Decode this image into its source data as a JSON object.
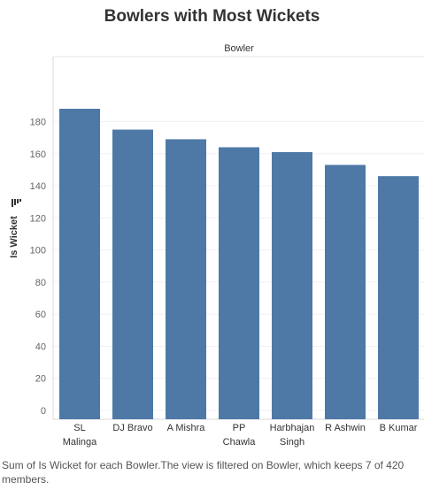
{
  "title": "Bowlers with Most Wickets",
  "footnote": "Sum of Is Wicket for each Bowler.The view is filtered on Bowler, which keeps 7 of 420 members.",
  "chart_data": {
    "type": "bar",
    "title": "Bowlers with Most Wickets",
    "column_header": "Bowler",
    "ylabel": "Is Wicket",
    "xlabel": "",
    "categories": [
      [
        "SL",
        "Malinga"
      ],
      [
        "DJ Bravo"
      ],
      [
        "A Mishra"
      ],
      [
        "PP",
        "Chawla"
      ],
      [
        "Harbhajan",
        "Singh"
      ],
      [
        "R Ashwin"
      ],
      [
        "B Kumar"
      ]
    ],
    "values": [
      188,
      175,
      169,
      164,
      161,
      153,
      146
    ],
    "ylim": [
      0,
      200
    ],
    "yticks": [
      0,
      20,
      40,
      60,
      80,
      100,
      120,
      140,
      160,
      180
    ],
    "bar_color": "#4e79a7",
    "grid": true,
    "sort_icon": "sort-descending-icon"
  }
}
